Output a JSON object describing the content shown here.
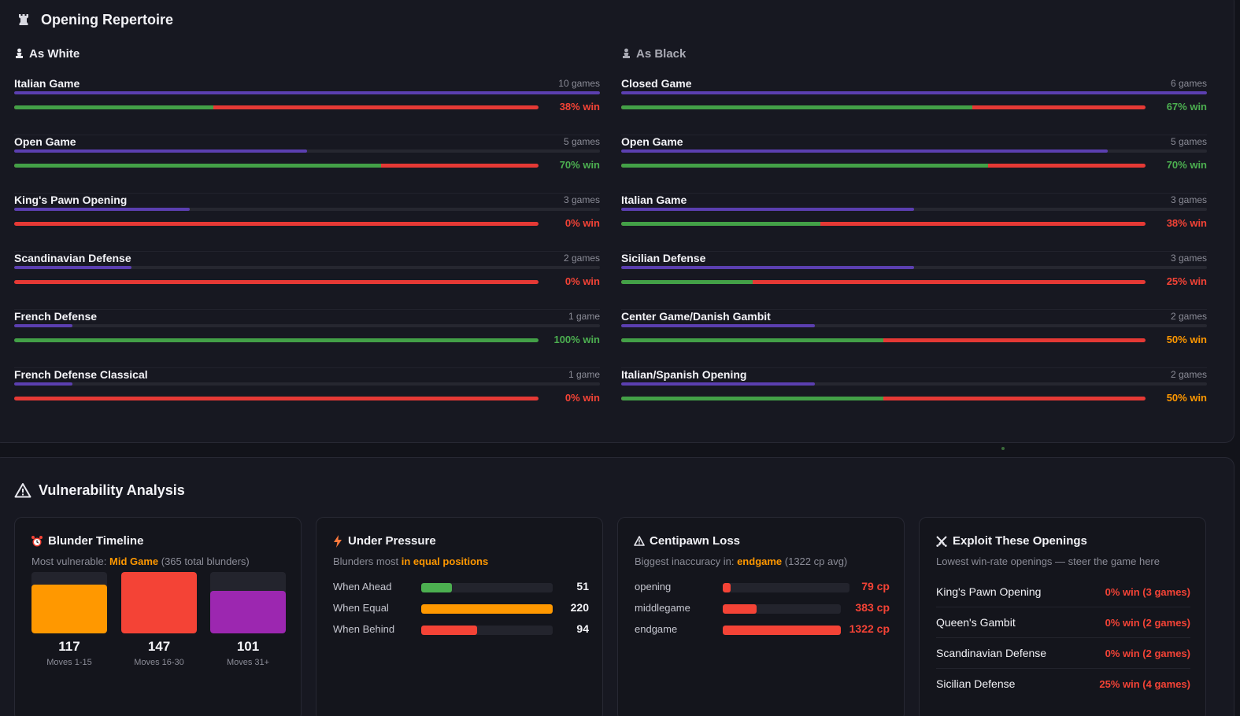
{
  "colors": {
    "win": "#4caf50",
    "loss": "#f44336",
    "warn": "#ff9800",
    "frequency": "#5b3fb0",
    "purple": "#9c27b0"
  },
  "repertoire": {
    "title": "Opening Repertoire",
    "icon": "rook-icon",
    "white": {
      "heading": "As White",
      "icon": "white-pawn-icon",
      "openings": [
        {
          "name": "Italian Game",
          "games": "10 games",
          "frequency_pct": 100,
          "win_pct": 38,
          "rate": "38% win",
          "rate_color": "#f44336"
        },
        {
          "name": "Open Game",
          "games": "5 games",
          "frequency_pct": 50,
          "win_pct": 70,
          "rate": "70% win",
          "rate_color": "#4caf50"
        },
        {
          "name": "King's Pawn Opening",
          "games": "3 games",
          "frequency_pct": 30,
          "win_pct": 0,
          "rate": "0% win",
          "rate_color": "#f44336"
        },
        {
          "name": "Scandinavian Defense",
          "games": "2 games",
          "frequency_pct": 20,
          "win_pct": 0,
          "rate": "0% win",
          "rate_color": "#f44336"
        },
        {
          "name": "French Defense",
          "games": "1 game",
          "frequency_pct": 10,
          "win_pct": 100,
          "rate": "100% win",
          "rate_color": "#4caf50"
        },
        {
          "name": "French Defense Classical",
          "games": "1 game",
          "frequency_pct": 10,
          "win_pct": 0,
          "rate": "0% win",
          "rate_color": "#f44336"
        }
      ]
    },
    "black": {
      "heading": "As Black",
      "icon": "black-pawn-icon",
      "openings": [
        {
          "name": "Closed Game",
          "games": "6 games",
          "frequency_pct": 100,
          "win_pct": 67,
          "rate": "67% win",
          "rate_color": "#4caf50"
        },
        {
          "name": "Open Game",
          "games": "5 games",
          "frequency_pct": 83,
          "win_pct": 70,
          "rate": "70% win",
          "rate_color": "#4caf50"
        },
        {
          "name": "Italian Game",
          "games": "3 games",
          "frequency_pct": 50,
          "win_pct": 38,
          "rate": "38% win",
          "rate_color": "#f44336"
        },
        {
          "name": "Sicilian Defense",
          "games": "3 games",
          "frequency_pct": 50,
          "win_pct": 25,
          "rate": "25% win",
          "rate_color": "#f44336"
        },
        {
          "name": "Center Game/Danish Gambit",
          "games": "2 games",
          "frequency_pct": 33,
          "win_pct": 50,
          "rate": "50% win",
          "rate_color": "#ff9800"
        },
        {
          "name": "Italian/Spanish Opening",
          "games": "2 games",
          "frequency_pct": 33,
          "win_pct": 50,
          "rate": "50% win",
          "rate_color": "#ff9800"
        }
      ]
    }
  },
  "vulnerability": {
    "title": "Vulnerability Analysis",
    "icon": "warning-icon",
    "blunder_timeline": {
      "title": "Blunder Timeline",
      "icon": "alarm-clock-icon",
      "subtitle_prefix": "Most vulnerable: ",
      "subtitle_highlight": "Mid Game",
      "subtitle_suffix": " (365 total blunders)",
      "columns": [
        {
          "value": "117",
          "label": "Moves 1-15",
          "level": 117,
          "color": "#ff9800"
        },
        {
          "value": "147",
          "label": "Moves 16-30",
          "level": 147,
          "color": "#f44336"
        },
        {
          "value": "101",
          "label": "Moves 31+",
          "level": 101,
          "color": "#9c27b0"
        }
      ],
      "max": 147
    },
    "under_pressure": {
      "title": "Under Pressure",
      "icon": "lightning-icon",
      "subtitle_prefix": "Blunders most ",
      "subtitle_highlight": "in equal positions",
      "rows": [
        {
          "label": "When Ahead",
          "value": "51",
          "level": 51,
          "color": "#4caf50"
        },
        {
          "label": "When Equal",
          "value": "220",
          "level": 220,
          "color": "#ff9800"
        },
        {
          "label": "When Behind",
          "value": "94",
          "level": 94,
          "color": "#f44336"
        }
      ],
      "max": 220
    },
    "centipawn": {
      "title": "Centipawn Loss",
      "icon": "warning-icon",
      "subtitle_prefix": "Biggest inaccuracy in: ",
      "subtitle_highlight": "endgame",
      "subtitle_suffix": " (1322 cp avg)",
      "rows": [
        {
          "label": "opening",
          "value": "79 cp",
          "level": 79
        },
        {
          "label": "middlegame",
          "value": "383 cp",
          "level": 383
        },
        {
          "label": "endgame",
          "value": "1322 cp",
          "level": 1322
        }
      ],
      "max": 1322
    },
    "exploit": {
      "title": "Exploit These Openings",
      "icon": "crossed-swords-icon",
      "subtitle": "Lowest win-rate openings — steer the game here",
      "rows": [
        {
          "name": "King's Pawn Opening",
          "rate": "0% win (3 games)"
        },
        {
          "name": "Queen's Gambit",
          "rate": "0% win (2 games)"
        },
        {
          "name": "Scandinavian Defense",
          "rate": "0% win (2 games)"
        },
        {
          "name": "Sicilian Defense",
          "rate": "25% win (4 games)"
        }
      ]
    }
  }
}
